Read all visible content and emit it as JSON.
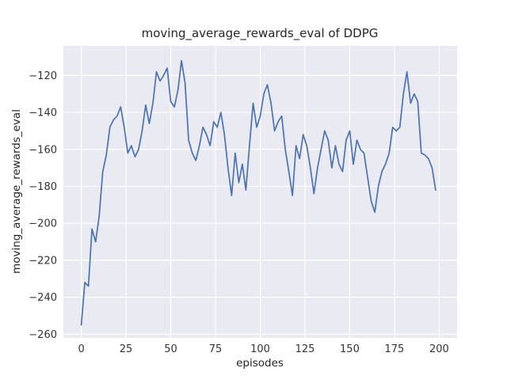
{
  "figure": {
    "background": "#ffffff"
  },
  "chart_data": {
    "type": "line",
    "title": "moving_average_rewards_eval of DDPG",
    "xlabel": "episodes",
    "ylabel": "moving_average_rewards_eval",
    "xlim": [
      -10,
      210
    ],
    "ylim": [
      -262,
      -104
    ],
    "xticks": [
      0,
      25,
      50,
      75,
      100,
      125,
      150,
      175,
      200
    ],
    "yticks": [
      -260,
      -240,
      -220,
      -200,
      -180,
      -160,
      -140,
      -120
    ],
    "grid": true,
    "legend": false,
    "line_color": "#4c72b0",
    "plot_bg": "#eaeaf2",
    "grid_color": "#ffffff",
    "series": [
      {
        "name": "moving_average_rewards_eval",
        "x_start": 0,
        "x_step": 2,
        "values": [
          -255,
          -232,
          -234,
          -203,
          -210,
          -196,
          -172,
          -163,
          -148,
          -144,
          -142,
          -137,
          -148,
          -162,
          -158,
          -164,
          -160,
          -150,
          -136,
          -146,
          -135,
          -118,
          -123,
          -120,
          -116,
          -134,
          -137,
          -128,
          -112,
          -124,
          -155,
          -162,
          -166,
          -158,
          -148,
          -152,
          -158,
          -145,
          -148,
          -140,
          -152,
          -170,
          -185,
          -162,
          -178,
          -168,
          -182,
          -158,
          -135,
          -148,
          -142,
          -130,
          -125,
          -135,
          -150,
          -145,
          -142,
          -160,
          -172,
          -185,
          -158,
          -165,
          -152,
          -158,
          -170,
          -184,
          -170,
          -160,
          -150,
          -155,
          -170,
          -158,
          -168,
          -172,
          -155,
          -150,
          -168,
          -155,
          -160,
          -162,
          -175,
          -188,
          -194,
          -180,
          -172,
          -168,
          -162,
          -148,
          -150,
          -148,
          -130,
          -118,
          -135,
          -130,
          -134,
          -162,
          -163,
          -165,
          -170,
          -182
        ]
      }
    ]
  }
}
